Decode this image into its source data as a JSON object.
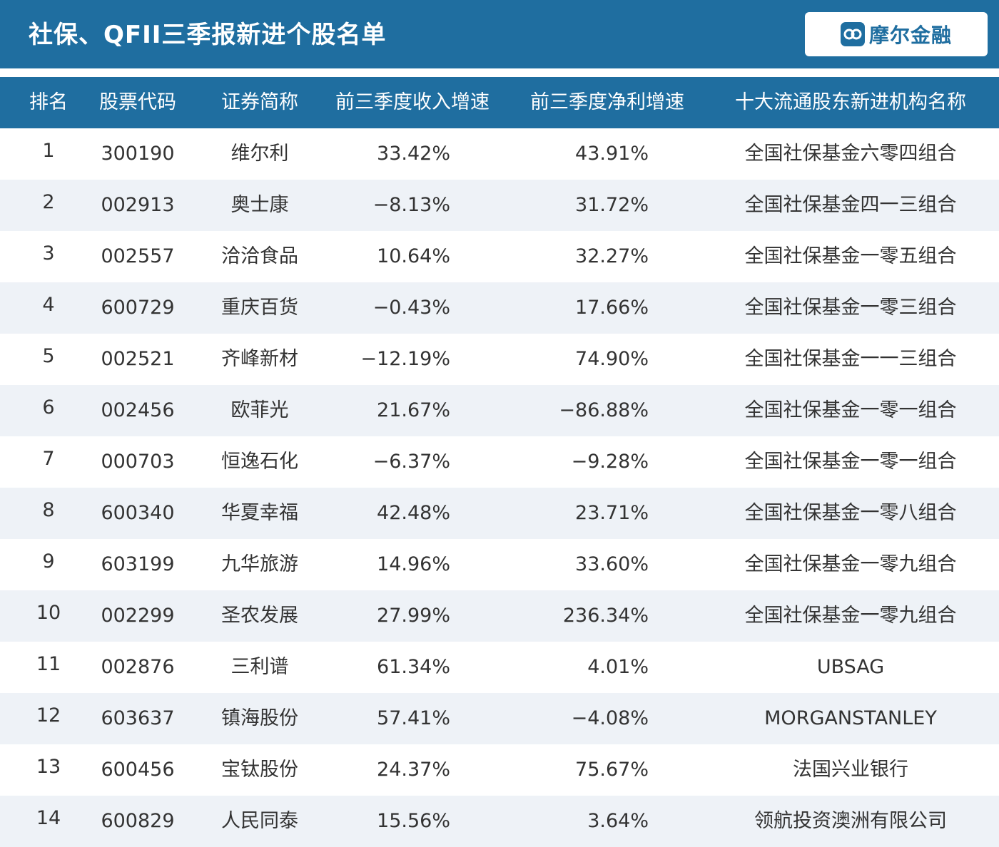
{
  "header": {
    "title": "社保、QFII三季报新进个股名单",
    "logo_text": "摩尔金融"
  },
  "columns": {
    "rank": "排名",
    "code": "股票代码",
    "name": "证券简称",
    "revenue_growth": "前三季度收入增速",
    "profit_growth": "前三季度净利增速",
    "institution": "十大流通股东新进机构名称"
  },
  "rows": [
    {
      "rank": "1",
      "code": "300190",
      "name": "维尔利",
      "revenue_growth": "33.42%",
      "profit_growth": "43.91%",
      "institution": "全国社保基金六零四组合"
    },
    {
      "rank": "2",
      "code": "002913",
      "name": "奥士康",
      "revenue_growth": "−8.13%",
      "profit_growth": "31.72%",
      "institution": "全国社保基金四一三组合"
    },
    {
      "rank": "3",
      "code": "002557",
      "name": "洽洽食品",
      "revenue_growth": "10.64%",
      "profit_growth": "32.27%",
      "institution": "全国社保基金一零五组合"
    },
    {
      "rank": "4",
      "code": "600729",
      "name": "重庆百货",
      "revenue_growth": "−0.43%",
      "profit_growth": "17.66%",
      "institution": "全国社保基金一零三组合"
    },
    {
      "rank": "5",
      "code": "002521",
      "name": "齐峰新材",
      "revenue_growth": "−12.19%",
      "profit_growth": "74.90%",
      "institution": "全国社保基金一一三组合"
    },
    {
      "rank": "6",
      "code": "002456",
      "name": "欧菲光",
      "revenue_growth": "21.67%",
      "profit_growth": "−86.88%",
      "institution": "全国社保基金一零一组合"
    },
    {
      "rank": "7",
      "code": "000703",
      "name": "恒逸石化",
      "revenue_growth": "−6.37%",
      "profit_growth": "−9.28%",
      "institution": "全国社保基金一零一组合"
    },
    {
      "rank": "8",
      "code": "600340",
      "name": "华夏幸福",
      "revenue_growth": "42.48%",
      "profit_growth": "23.71%",
      "institution": "全国社保基金一零八组合"
    },
    {
      "rank": "9",
      "code": "603199",
      "name": "九华旅游",
      "revenue_growth": "14.96%",
      "profit_growth": "33.60%",
      "institution": "全国社保基金一零九组合"
    },
    {
      "rank": "10",
      "code": "002299",
      "name": "圣农发展",
      "revenue_growth": "27.99%",
      "profit_growth": "236.34%",
      "institution": "全国社保基金一零九组合"
    },
    {
      "rank": "11",
      "code": "002876",
      "name": "三利谱",
      "revenue_growth": "61.34%",
      "profit_growth": "4.01%",
      "institution": "UBSAG"
    },
    {
      "rank": "12",
      "code": "603637",
      "name": "镇海股份",
      "revenue_growth": "57.41%",
      "profit_growth": "−4.08%",
      "institution": "MORGANSTANLEY"
    },
    {
      "rank": "13",
      "code": "600456",
      "name": "宝钛股份",
      "revenue_growth": "24.37%",
      "profit_growth": "75.67%",
      "institution": "法国兴业银行"
    },
    {
      "rank": "14",
      "code": "600829",
      "name": "人民同泰",
      "revenue_growth": "15.56%",
      "profit_growth": "3.64%",
      "institution": "领航投资澳洲有限公司"
    }
  ],
  "colors": {
    "header_blue": "#1f6ea0",
    "row_alt": "#eef2f7",
    "text": "#333333"
  }
}
